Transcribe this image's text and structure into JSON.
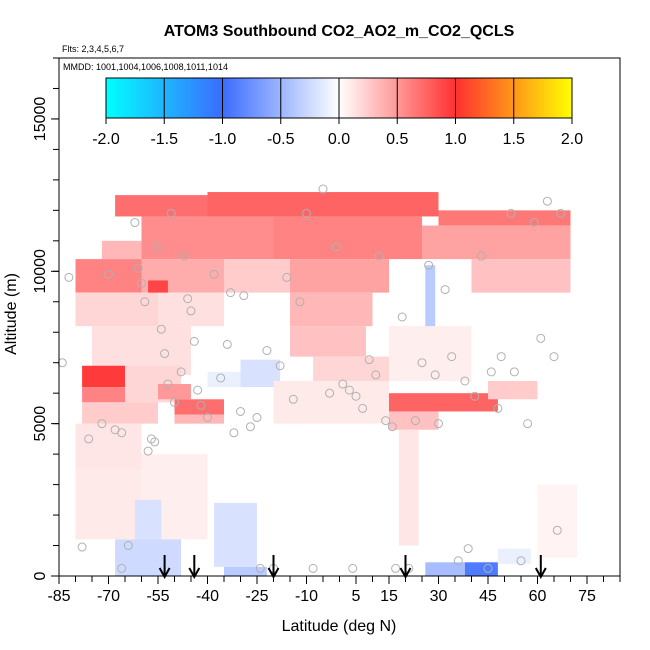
{
  "chart_data": {
    "type": "heatmap",
    "title": "ATOM3 Southbound CO2_AO2_m_CO2_QCLS",
    "flights_label": "Flts: 2,3,4,5,6,7",
    "mmdd_label": "MMDD: 1001,1004,1006,1008,1011,1014",
    "xlabel": "Latitude (deg N)",
    "ylabel": "Altitude (m)",
    "xlim": [
      -85,
      85
    ],
    "ylim": [
      0,
      17000
    ],
    "x_ticks": [
      -85,
      -70,
      -55,
      -40,
      -25,
      -10,
      5,
      15,
      30,
      45,
      60,
      75
    ],
    "x_tick_labels": [
      "-85",
      "-70",
      "-55",
      "-40",
      "-25",
      "-10",
      "5",
      "15",
      "30",
      "45",
      "60",
      "75"
    ],
    "y_ticks": [
      0,
      5000,
      10000,
      15000
    ],
    "y_tick_labels": [
      "0",
      "5000",
      "10000",
      "15000"
    ],
    "colorbar": {
      "min": -2.0,
      "max": 2.0,
      "ticks": [
        -2.0,
        -1.5,
        -1.0,
        -0.5,
        0.0,
        0.5,
        1.0,
        1.5,
        2.0
      ],
      "tick_labels": [
        "-2.0",
        "-1.5",
        "-1.0",
        "-0.5",
        "0.0",
        "0.5",
        "1.0",
        "1.5",
        "2.0"
      ],
      "colors": [
        "#00ffff",
        "#3b6cff",
        "#ffffff",
        "#ff3030",
        "#ffff00"
      ]
    },
    "arrows_lat": [
      -53,
      -44,
      -20,
      20,
      61
    ],
    "cells": [
      {
        "lat0": -68,
        "lat1": -40,
        "alt0": 11800,
        "alt1": 12500,
        "value": 0.7
      },
      {
        "lat0": -40,
        "lat1": 30,
        "alt0": 11800,
        "alt1": 12600,
        "value": 0.75
      },
      {
        "lat0": 30,
        "lat1": 70,
        "alt0": 11500,
        "alt1": 12000,
        "value": 0.65
      },
      {
        "lat0": -60,
        "lat1": -20,
        "alt0": 10400,
        "alt1": 11800,
        "value": 0.55
      },
      {
        "lat0": -20,
        "lat1": 25,
        "alt0": 10400,
        "alt1": 11800,
        "value": 0.6
      },
      {
        "lat0": 25,
        "lat1": 70,
        "alt0": 10400,
        "alt1": 11500,
        "value": 0.45
      },
      {
        "lat0": -72,
        "lat1": -60,
        "alt0": 10400,
        "alt1": 11000,
        "value": 0.35
      },
      {
        "lat0": -80,
        "lat1": -60,
        "alt0": 9300,
        "alt1": 10400,
        "value": 0.6
      },
      {
        "lat0": -60,
        "lat1": -35,
        "alt0": 9300,
        "alt1": 10400,
        "value": 0.4
      },
      {
        "lat0": -35,
        "lat1": -15,
        "alt0": 9300,
        "alt1": 10400,
        "value": 0.25
      },
      {
        "lat0": -15,
        "lat1": 15,
        "alt0": 9300,
        "alt1": 10400,
        "value": 0.45
      },
      {
        "lat0": 40,
        "lat1": 70,
        "alt0": 9300,
        "alt1": 10400,
        "value": 0.3
      },
      {
        "lat0": -58,
        "lat1": -52,
        "alt0": 8900,
        "alt1": 9700,
        "value": 0.9
      },
      {
        "lat0": -80,
        "lat1": -55,
        "alt0": 8200,
        "alt1": 9300,
        "value": 0.2
      },
      {
        "lat0": -55,
        "lat1": -35,
        "alt0": 8200,
        "alt1": 9300,
        "value": 0.15
      },
      {
        "lat0": -15,
        "lat1": 10,
        "alt0": 8200,
        "alt1": 9300,
        "value": 0.35
      },
      {
        "lat0": -15,
        "lat1": 8,
        "alt0": 7200,
        "alt1": 8200,
        "value": 0.3
      },
      {
        "lat0": -8,
        "lat1": 15,
        "alt0": 6400,
        "alt1": 7200,
        "value": 0.2
      },
      {
        "lat0": -75,
        "lat1": -45,
        "alt0": 6600,
        "alt1": 8200,
        "value": 0.15
      },
      {
        "lat0": -78,
        "lat1": -65,
        "alt0": 6200,
        "alt1": 6900,
        "value": 0.95
      },
      {
        "lat0": -78,
        "lat1": -65,
        "alt0": 5700,
        "alt1": 6200,
        "value": 0.6
      },
      {
        "lat0": -65,
        "lat1": -48,
        "alt0": 5700,
        "alt1": 6900,
        "value": 0.2
      },
      {
        "lat0": -78,
        "lat1": -55,
        "alt0": 5000,
        "alt1": 5700,
        "value": 0.25
      },
      {
        "lat0": -50,
        "lat1": -35,
        "alt0": 5300,
        "alt1": 5800,
        "value": 0.7
      },
      {
        "lat0": -55,
        "lat1": -45,
        "alt0": 5800,
        "alt1": 6300,
        "value": 0.5
      },
      {
        "lat0": -50,
        "lat1": -35,
        "alt0": 5000,
        "alt1": 5300,
        "value": 0.35
      },
      {
        "lat0": -30,
        "lat1": -18,
        "alt0": 6200,
        "alt1": 7100,
        "value": -0.2
      },
      {
        "lat0": -40,
        "lat1": -30,
        "alt0": 6200,
        "alt1": 6700,
        "value": -0.1
      },
      {
        "lat0": 15,
        "lat1": 48,
        "alt0": 5400,
        "alt1": 6000,
        "value": 0.75
      },
      {
        "lat0": 15,
        "lat1": 30,
        "alt0": 4800,
        "alt1": 5400,
        "value": 0.3
      },
      {
        "lat0": 45,
        "lat1": 60,
        "alt0": 5800,
        "alt1": 6400,
        "value": 0.25
      },
      {
        "lat0": -20,
        "lat1": 15,
        "alt0": 5000,
        "alt1": 6400,
        "value": 0.1
      },
      {
        "lat0": 18,
        "lat1": 24,
        "alt0": 1000,
        "alt1": 4800,
        "value": 0.12
      },
      {
        "lat0": -80,
        "lat1": -60,
        "alt0": 3500,
        "alt1": 5000,
        "value": 0.12
      },
      {
        "lat0": -80,
        "lat1": -60,
        "alt0": 1200,
        "alt1": 3500,
        "value": 0.1
      },
      {
        "lat0": -60,
        "lat1": -40,
        "alt0": 1200,
        "alt1": 4000,
        "value": 0.08
      },
      {
        "lat0": -68,
        "lat1": -48,
        "alt0": 0,
        "alt1": 1200,
        "value": -0.25
      },
      {
        "lat0": -62,
        "lat1": -54,
        "alt0": 1200,
        "alt1": 2500,
        "value": -0.2
      },
      {
        "lat0": -38,
        "lat1": -25,
        "alt0": 300,
        "alt1": 2400,
        "value": -0.2
      },
      {
        "lat0": -35,
        "lat1": -22,
        "alt0": 0,
        "alt1": 300,
        "value": -0.35
      },
      {
        "lat0": 26,
        "lat1": 38,
        "alt0": 0,
        "alt1": 450,
        "value": -0.45
      },
      {
        "lat0": 38,
        "lat1": 48,
        "alt0": 0,
        "alt1": 450,
        "value": -0.9
      },
      {
        "lat0": 48,
        "lat1": 58,
        "alt0": 400,
        "alt1": 900,
        "value": -0.1
      },
      {
        "lat0": 60,
        "lat1": 72,
        "alt0": 600,
        "alt1": 3000,
        "value": 0.06
      },
      {
        "lat0": 26,
        "lat1": 29,
        "alt0": 7000,
        "alt1": 10200,
        "value": -0.35
      },
      {
        "lat0": 15,
        "lat1": 40,
        "alt0": 6400,
        "alt1": 8200,
        "value": 0.08
      }
    ],
    "points": [
      [
        -82,
        9800
      ],
      [
        -84,
        7000
      ],
      [
        -76,
        4500
      ],
      [
        -78,
        950
      ],
      [
        -72,
        5000
      ],
      [
        -70,
        9900
      ],
      [
        -68,
        4800
      ],
      [
        -66,
        4700
      ],
      [
        -66,
        250
      ],
      [
        -64,
        1000
      ],
      [
        -62,
        11600
      ],
      [
        -61,
        10100
      ],
      [
        -60,
        9600
      ],
      [
        -59,
        9000
      ],
      [
        -58,
        4100
      ],
      [
        -57,
        4500
      ],
      [
        -56,
        4400
      ],
      [
        -55,
        10800
      ],
      [
        -54,
        8100
      ],
      [
        -53,
        7300
      ],
      [
        -52,
        6300
      ],
      [
        -51,
        11900
      ],
      [
        -50,
        5700
      ],
      [
        -48,
        6700
      ],
      [
        -47,
        10500
      ],
      [
        -46,
        9100
      ],
      [
        -45,
        8700
      ],
      [
        -44,
        7700
      ],
      [
        -43,
        6100
      ],
      [
        -42,
        5600
      ],
      [
        -40,
        5200
      ],
      [
        -38,
        9900
      ],
      [
        -36,
        6500
      ],
      [
        -34,
        7600
      ],
      [
        -33,
        9300
      ],
      [
        -32,
        4700
      ],
      [
        -30,
        5400
      ],
      [
        -29,
        9200
      ],
      [
        -27,
        4900
      ],
      [
        -25,
        5200
      ],
      [
        -24,
        250
      ],
      [
        -22,
        7400
      ],
      [
        -20,
        250
      ],
      [
        -18,
        6900
      ],
      [
        -16,
        9800
      ],
      [
        -14,
        5800
      ],
      [
        -12,
        9000
      ],
      [
        -10,
        11900
      ],
      [
        -8,
        250
      ],
      [
        -5,
        12700
      ],
      [
        -3,
        6000
      ],
      [
        -1,
        10800
      ],
      [
        1,
        6300
      ],
      [
        3,
        6100
      ],
      [
        4,
        250
      ],
      [
        5,
        5900
      ],
      [
        7,
        5500
      ],
      [
        9,
        7100
      ],
      [
        11,
        6600
      ],
      [
        12,
        10500
      ],
      [
        14,
        5100
      ],
      [
        16,
        4900
      ],
      [
        17,
        250
      ],
      [
        19,
        8500
      ],
      [
        21,
        250
      ],
      [
        23,
        5100
      ],
      [
        25,
        7000
      ],
      [
        27,
        10200
      ],
      [
        29,
        6600
      ],
      [
        30,
        5000
      ],
      [
        32,
        9400
      ],
      [
        34,
        7200
      ],
      [
        36,
        500
      ],
      [
        38,
        6400
      ],
      [
        39,
        900
      ],
      [
        41,
        5900
      ],
      [
        43,
        10500
      ],
      [
        45,
        250
      ],
      [
        46,
        6700
      ],
      [
        48,
        5500
      ],
      [
        49,
        7200
      ],
      [
        52,
        11900
      ],
      [
        53,
        6700
      ],
      [
        55,
        500
      ],
      [
        57,
        5000
      ],
      [
        59,
        11600
      ],
      [
        61,
        7800
      ],
      [
        63,
        12300
      ],
      [
        65,
        7200
      ],
      [
        66,
        1500
      ],
      [
        67,
        11900
      ]
    ]
  }
}
